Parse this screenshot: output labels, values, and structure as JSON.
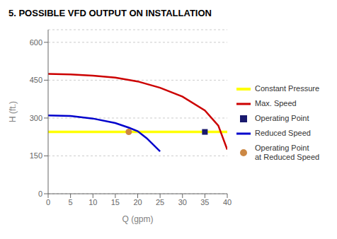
{
  "chart_data": {
    "type": "line",
    "title": "5. POSSIBLE VFD OUTPUT ON INSTALLATION",
    "x_label": "Q (gpm)",
    "y_label": "H (ft.)",
    "xlim": [
      0,
      40
    ],
    "ylim": [
      0,
      650
    ],
    "xticks": [
      0,
      5,
      10,
      15,
      20,
      25,
      30,
      35,
      40
    ],
    "yticks": [
      0,
      150,
      300,
      450,
      600
    ],
    "grid": "y",
    "legend": "right",
    "series": [
      {
        "name": "Constant Pressure",
        "type": "hline",
        "color": "#ffff00",
        "values": [
          245
        ]
      },
      {
        "name": "Max. Speed",
        "type": "line",
        "color": "#cc0000",
        "x": [
          0,
          5,
          10,
          15,
          20,
          25,
          30,
          35,
          38,
          40
        ],
        "values": [
          475,
          473,
          468,
          460,
          445,
          420,
          385,
          330,
          270,
          175
        ]
      },
      {
        "name": "Operating Point",
        "type": "scatter",
        "marker": "square",
        "color": "#1a1a6e",
        "x": [
          35
        ],
        "values": [
          245
        ]
      },
      {
        "name": "Reduced Speed",
        "type": "line",
        "color": "#0000cc",
        "x": [
          0,
          5,
          10,
          15,
          18,
          20,
          22,
          25
        ],
        "values": [
          310,
          308,
          298,
          280,
          262,
          248,
          220,
          168
        ]
      },
      {
        "name": "Operating Point\nat Reduced Speed",
        "type": "scatter",
        "marker": "circle",
        "color": "#cc8844",
        "x": [
          18
        ],
        "values": [
          245
        ]
      }
    ]
  }
}
